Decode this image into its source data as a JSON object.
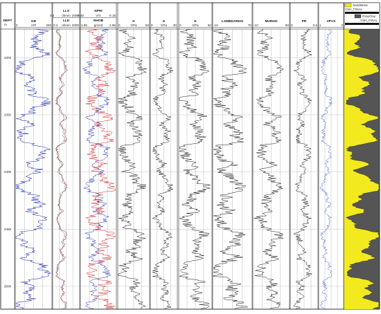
{
  "colors": {
    "gr": "#1f2fb0",
    "lld": "#8a1f1f",
    "lls": "#555555",
    "rhob": "#d21f1f",
    "nphi": "#1f2fb0",
    "vpvs": "#3a63c8",
    "sand": "#f2ea1e",
    "clay": "#555555",
    "black": "#111111"
  },
  "chart_data": {
    "type": "line",
    "title": "",
    "depth_track": {
      "label": "DEPT",
      "unit": "m",
      "ticks": [
        2300,
        2350,
        2400,
        2450,
        2500
      ]
    },
    "tracks": [
      {
        "name": "GR",
        "unit": "API",
        "left": "0",
        "right": "200"
      },
      {
        "name": "LLD",
        "unit": "ohmm",
        "left": "0.2",
        "right": "2000",
        "extra": {
          "name": "LLS",
          "unit": "ohmm",
          "left": "0.2",
          "right": "2000"
        }
      },
      {
        "name": "RHOB",
        "unit": "g/cm3",
        "left": "1.95",
        "right": "2.95",
        "extra": {
          "name": "NPHI",
          "unit": "V/V",
          "left": "0.45",
          "right": "-0.15"
        }
      },
      {
        "name": "K",
        "unit": "GPa",
        "left": "0",
        "right": "50"
      },
      {
        "name": "G",
        "unit": "GPa",
        "left": "0",
        "right": "30"
      },
      {
        "name": "E",
        "unit": "GPa",
        "left": "0",
        "right": "60"
      },
      {
        "name": "LAMBDARHO",
        "unit": "",
        "left": "-10",
        "right": "70"
      },
      {
        "name": "MURHO",
        "unit": "",
        "left": "-10",
        "right": "50"
      },
      {
        "name": "PR",
        "unit": "",
        "left": "0",
        "right": "0.5"
      },
      {
        "name": "VPVS",
        "unit": "",
        "left": "1",
        "right": "3"
      },
      {
        "name": "VSH_FINAL",
        "unit": "",
        "left": "0",
        "right": "1"
      }
    ],
    "legend": [
      "Sandstone",
      "VSH_FINAL",
      "GrayClay",
      "VSH_FINAL"
    ]
  }
}
